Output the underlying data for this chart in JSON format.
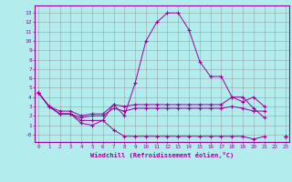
{
  "xlabel": "Windchill (Refroidissement éolien,°C)",
  "x": [
    0,
    1,
    2,
    3,
    4,
    5,
    6,
    7,
    8,
    9,
    10,
    11,
    12,
    13,
    14,
    15,
    16,
    17,
    18,
    19,
    20,
    21,
    22,
    23
  ],
  "y1": [
    4.5,
    3.0,
    2.2,
    2.2,
    1.5,
    1.5,
    1.5,
    3.2,
    2.0,
    5.5,
    10.0,
    12.0,
    13.0,
    13.0,
    11.2,
    7.8,
    6.2,
    6.2,
    4.0,
    4.0,
    2.8,
    1.8,
    null,
    -0.2
  ],
  "y2": [
    4.5,
    3.0,
    2.5,
    2.5,
    2.0,
    2.2,
    2.2,
    3.2,
    3.0,
    3.2,
    3.2,
    3.2,
    3.2,
    3.2,
    3.2,
    3.2,
    3.2,
    3.2,
    4.0,
    3.5,
    4.0,
    3.0,
    null,
    -0.2
  ],
  "y3": [
    4.5,
    3.0,
    2.2,
    2.2,
    1.8,
    2.0,
    2.0,
    2.8,
    2.5,
    2.8,
    2.8,
    2.8,
    2.8,
    2.8,
    2.8,
    2.8,
    2.8,
    2.8,
    3.0,
    2.8,
    2.5,
    2.5,
    null,
    -0.2
  ],
  "y4": [
    4.5,
    3.0,
    2.2,
    2.2,
    1.2,
    1.0,
    1.5,
    0.5,
    -0.2,
    -0.2,
    -0.2,
    -0.2,
    -0.2,
    -0.2,
    -0.2,
    -0.2,
    -0.2,
    -0.2,
    -0.2,
    -0.2,
    -0.5,
    -0.2,
    null,
    -0.2
  ],
  "color": "#990099",
  "bg_color": "#b3ecec",
  "grid_color": "#888888",
  "yticks": [
    0,
    1,
    2,
    3,
    4,
    5,
    6,
    7,
    8,
    9,
    10,
    11,
    12,
    13
  ],
  "ylim": [
    -0.8,
    13.8
  ],
  "xlim": [
    0,
    23
  ]
}
